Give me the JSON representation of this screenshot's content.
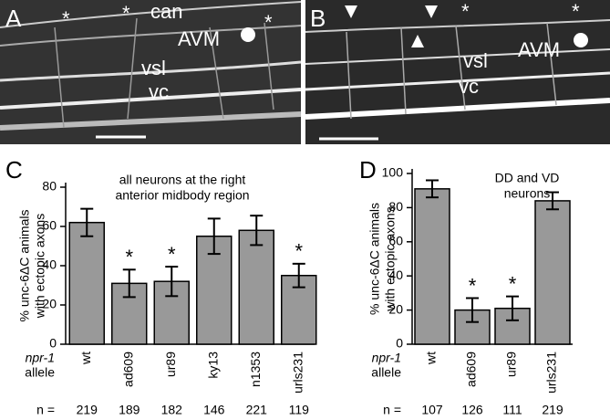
{
  "panels": {
    "A": {
      "letter": "A",
      "stars": [
        "*",
        "*",
        "*"
      ],
      "labels": [
        "can",
        "AVM",
        "vsl",
        "vc"
      ]
    },
    "B": {
      "letter": "B",
      "stars": [
        "*",
        "*"
      ],
      "labels": [
        "vsl",
        "AVM",
        "vc"
      ]
    }
  },
  "chart_data": [
    {
      "type": "bar",
      "panel": "C",
      "annotation": [
        "all neurons at the right",
        "anterior midbody region"
      ],
      "y_label": [
        "% unc-6ΔC animals",
        "with ectopic axons"
      ],
      "x_label": [
        "npr-1",
        "allele"
      ],
      "categories": [
        "wt",
        "ad609",
        "ur89",
        "ky13",
        "n1353",
        "urls231"
      ],
      "values": [
        62,
        31,
        32,
        55,
        58,
        35
      ],
      "errors": [
        7,
        7,
        7.5,
        9,
        7.5,
        6
      ],
      "markers": [
        null,
        "*",
        "*",
        null,
        null,
        "*"
      ],
      "n_label": "n =",
      "n": [
        219,
        189,
        182,
        146,
        221,
        119
      ],
      "color": "#999999",
      "ylim": [
        0,
        80
      ],
      "yticks": [
        0,
        20,
        40,
        60,
        80
      ]
    },
    {
      "type": "bar",
      "panel": "D",
      "annotation": [
        "DD and VD",
        "neurons"
      ],
      "y_label": [
        "% unc-6ΔC animals",
        "with ectopic axons"
      ],
      "x_label": [
        "npr-1",
        "allele"
      ],
      "categories": [
        "wt",
        "ad609",
        "ur89",
        "urls231"
      ],
      "values": [
        91,
        20,
        21,
        84
      ],
      "errors": [
        5,
        7,
        7,
        5
      ],
      "markers": [
        null,
        "*",
        "*",
        null
      ],
      "n_label": "n =",
      "n": [
        107,
        126,
        111,
        219
      ],
      "color": "#999999",
      "ylim": [
        0,
        100
      ],
      "yticks": [
        0,
        20,
        40,
        60,
        80,
        100
      ]
    }
  ]
}
